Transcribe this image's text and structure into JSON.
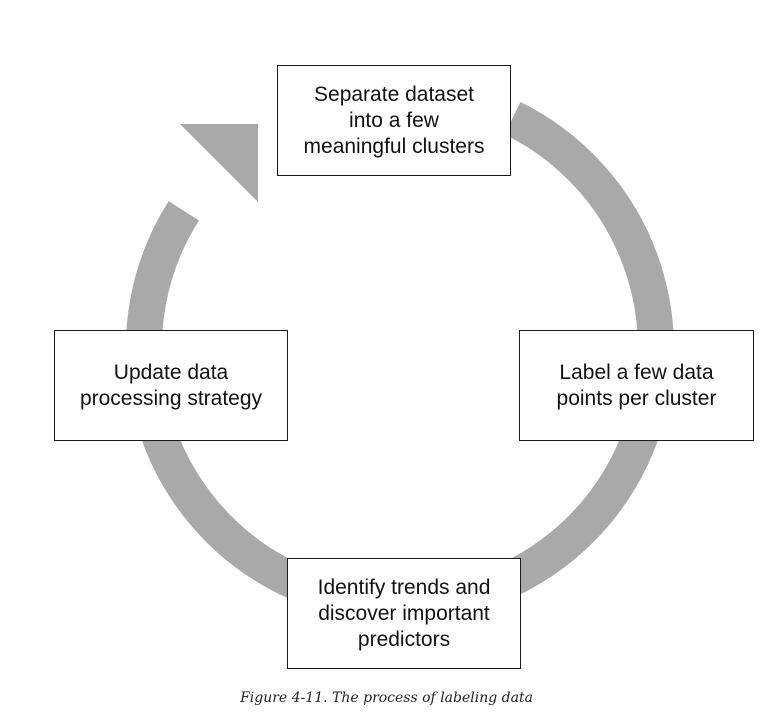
{
  "diagram": {
    "type": "cycle",
    "steps": [
      {
        "id": "top",
        "label": "Separate dataset\ninto a few\nmeaningful clusters"
      },
      {
        "id": "right",
        "label": "Label a few data\npoints per cluster"
      },
      {
        "id": "bottom",
        "label": "Identify trends and\ndiscover important\npredictors"
      },
      {
        "id": "left",
        "label": "Update data\nprocessing strategy"
      }
    ],
    "flow_direction": "clockwise",
    "ring_color": "#a9a9a9"
  },
  "caption": "Figure 4-11. The process of labeling data"
}
